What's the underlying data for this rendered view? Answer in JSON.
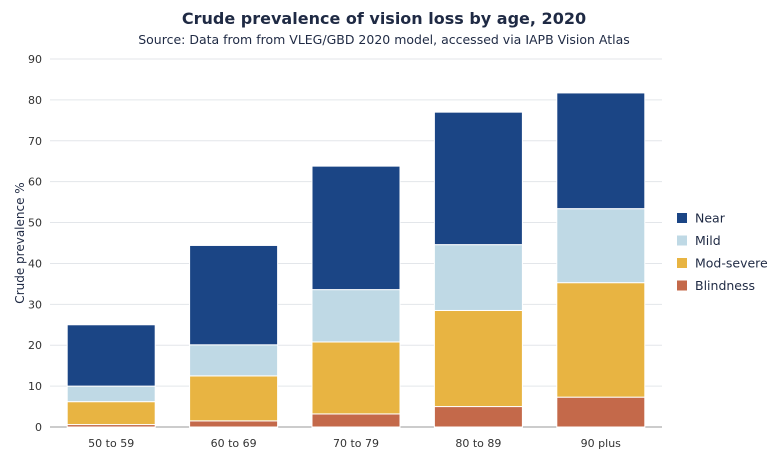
{
  "chart_data": {
    "type": "bar",
    "stacked": true,
    "title": "Crude prevalence of vision loss by age, 2020",
    "subtitle": "Source: Data from from VLEG/GBD 2020 model, accessed via IAPB Vision Atlas",
    "xlabel": "",
    "ylabel": "Crude prevalence %",
    "ylim": [
      0,
      90
    ],
    "yticks": [
      0,
      10,
      20,
      30,
      40,
      50,
      60,
      70,
      80,
      90
    ],
    "grid": true,
    "legend_position": "right",
    "categories": [
      "50 to 59",
      "60 to 69",
      "70 to 79",
      "80 to 89",
      "90 plus"
    ],
    "series": [
      {
        "name": "Blindness",
        "color": "#c4694a",
        "values": [
          0.6,
          1.5,
          3.2,
          5.0,
          7.3
        ]
      },
      {
        "name": "Mod-severe",
        "color": "#e8b442",
        "values": [
          5.6,
          11.0,
          17.6,
          23.5,
          28.0
        ]
      },
      {
        "name": "Mild",
        "color": "#bfd9e5",
        "values": [
          3.8,
          7.6,
          12.8,
          16.1,
          18.1
        ]
      },
      {
        "name": "Near",
        "color": "#1b4585",
        "values": [
          15.0,
          24.3,
          30.2,
          32.4,
          28.3
        ]
      }
    ],
    "legend_order": [
      "Near",
      "Mild",
      "Mod-severe",
      "Blindness"
    ]
  }
}
